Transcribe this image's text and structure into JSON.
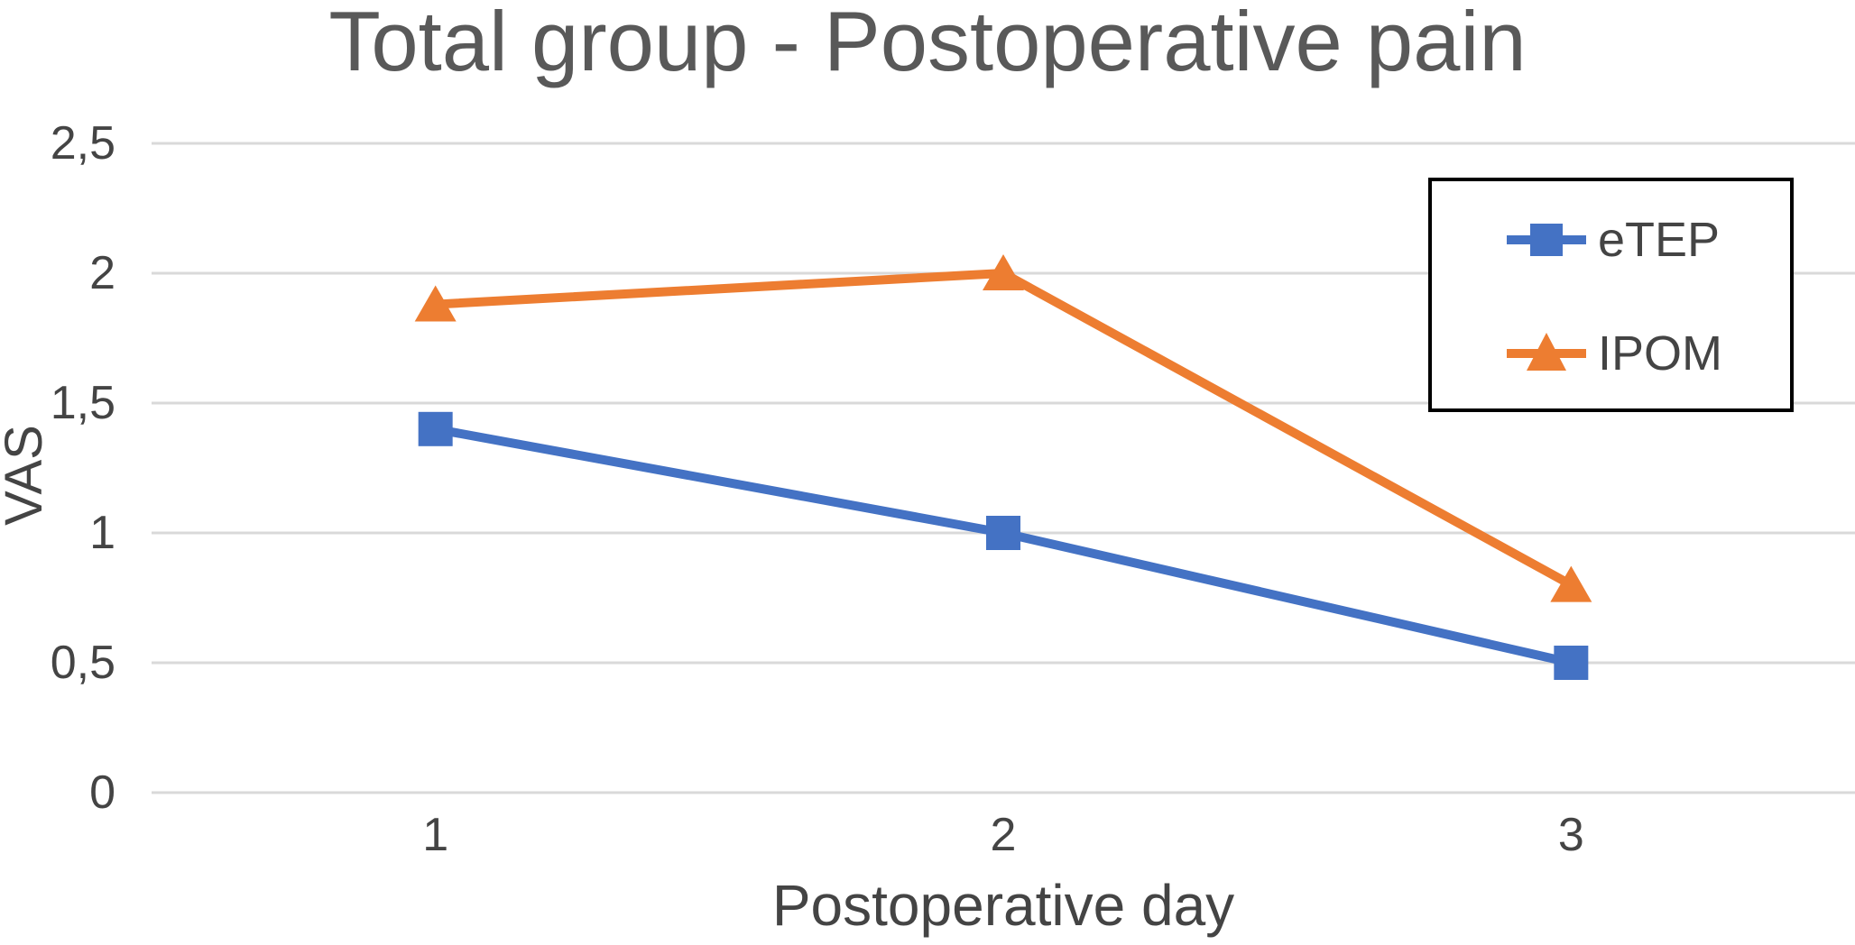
{
  "chart_data": {
    "type": "line",
    "title": "Total group - Postoperative pain",
    "xlabel": "Postoperative day",
    "ylabel": "VAS",
    "categories": [
      "1",
      "2",
      "3"
    ],
    "series": [
      {
        "name": "eTEP",
        "values": [
          1.4,
          1.0,
          0.5
        ],
        "color": "#4472C4",
        "marker": "square"
      },
      {
        "name": "IPOM",
        "values": [
          1.88,
          2.0,
          0.8
        ],
        "color": "#ED7D31",
        "marker": "triangle"
      }
    ],
    "ylim": [
      0,
      2.5
    ],
    "ytick_step": 0.5,
    "ytick_values": [
      0,
      0.5,
      1,
      1.5,
      2,
      2.5
    ],
    "ytick_labels": [
      "0",
      "0,5",
      "1",
      "1,5",
      "2",
      "2,5"
    ],
    "xtick_labels": [
      "1",
      "2",
      "3"
    ],
    "decimal_separator": ",",
    "grid": "horizontal",
    "legend_position": "upper-right"
  },
  "colors": {
    "grid": "#D9D9D9",
    "title_text": "#595959",
    "axis_text": "#444444",
    "legend_border": "#000000",
    "background": "#FFFFFF"
  }
}
